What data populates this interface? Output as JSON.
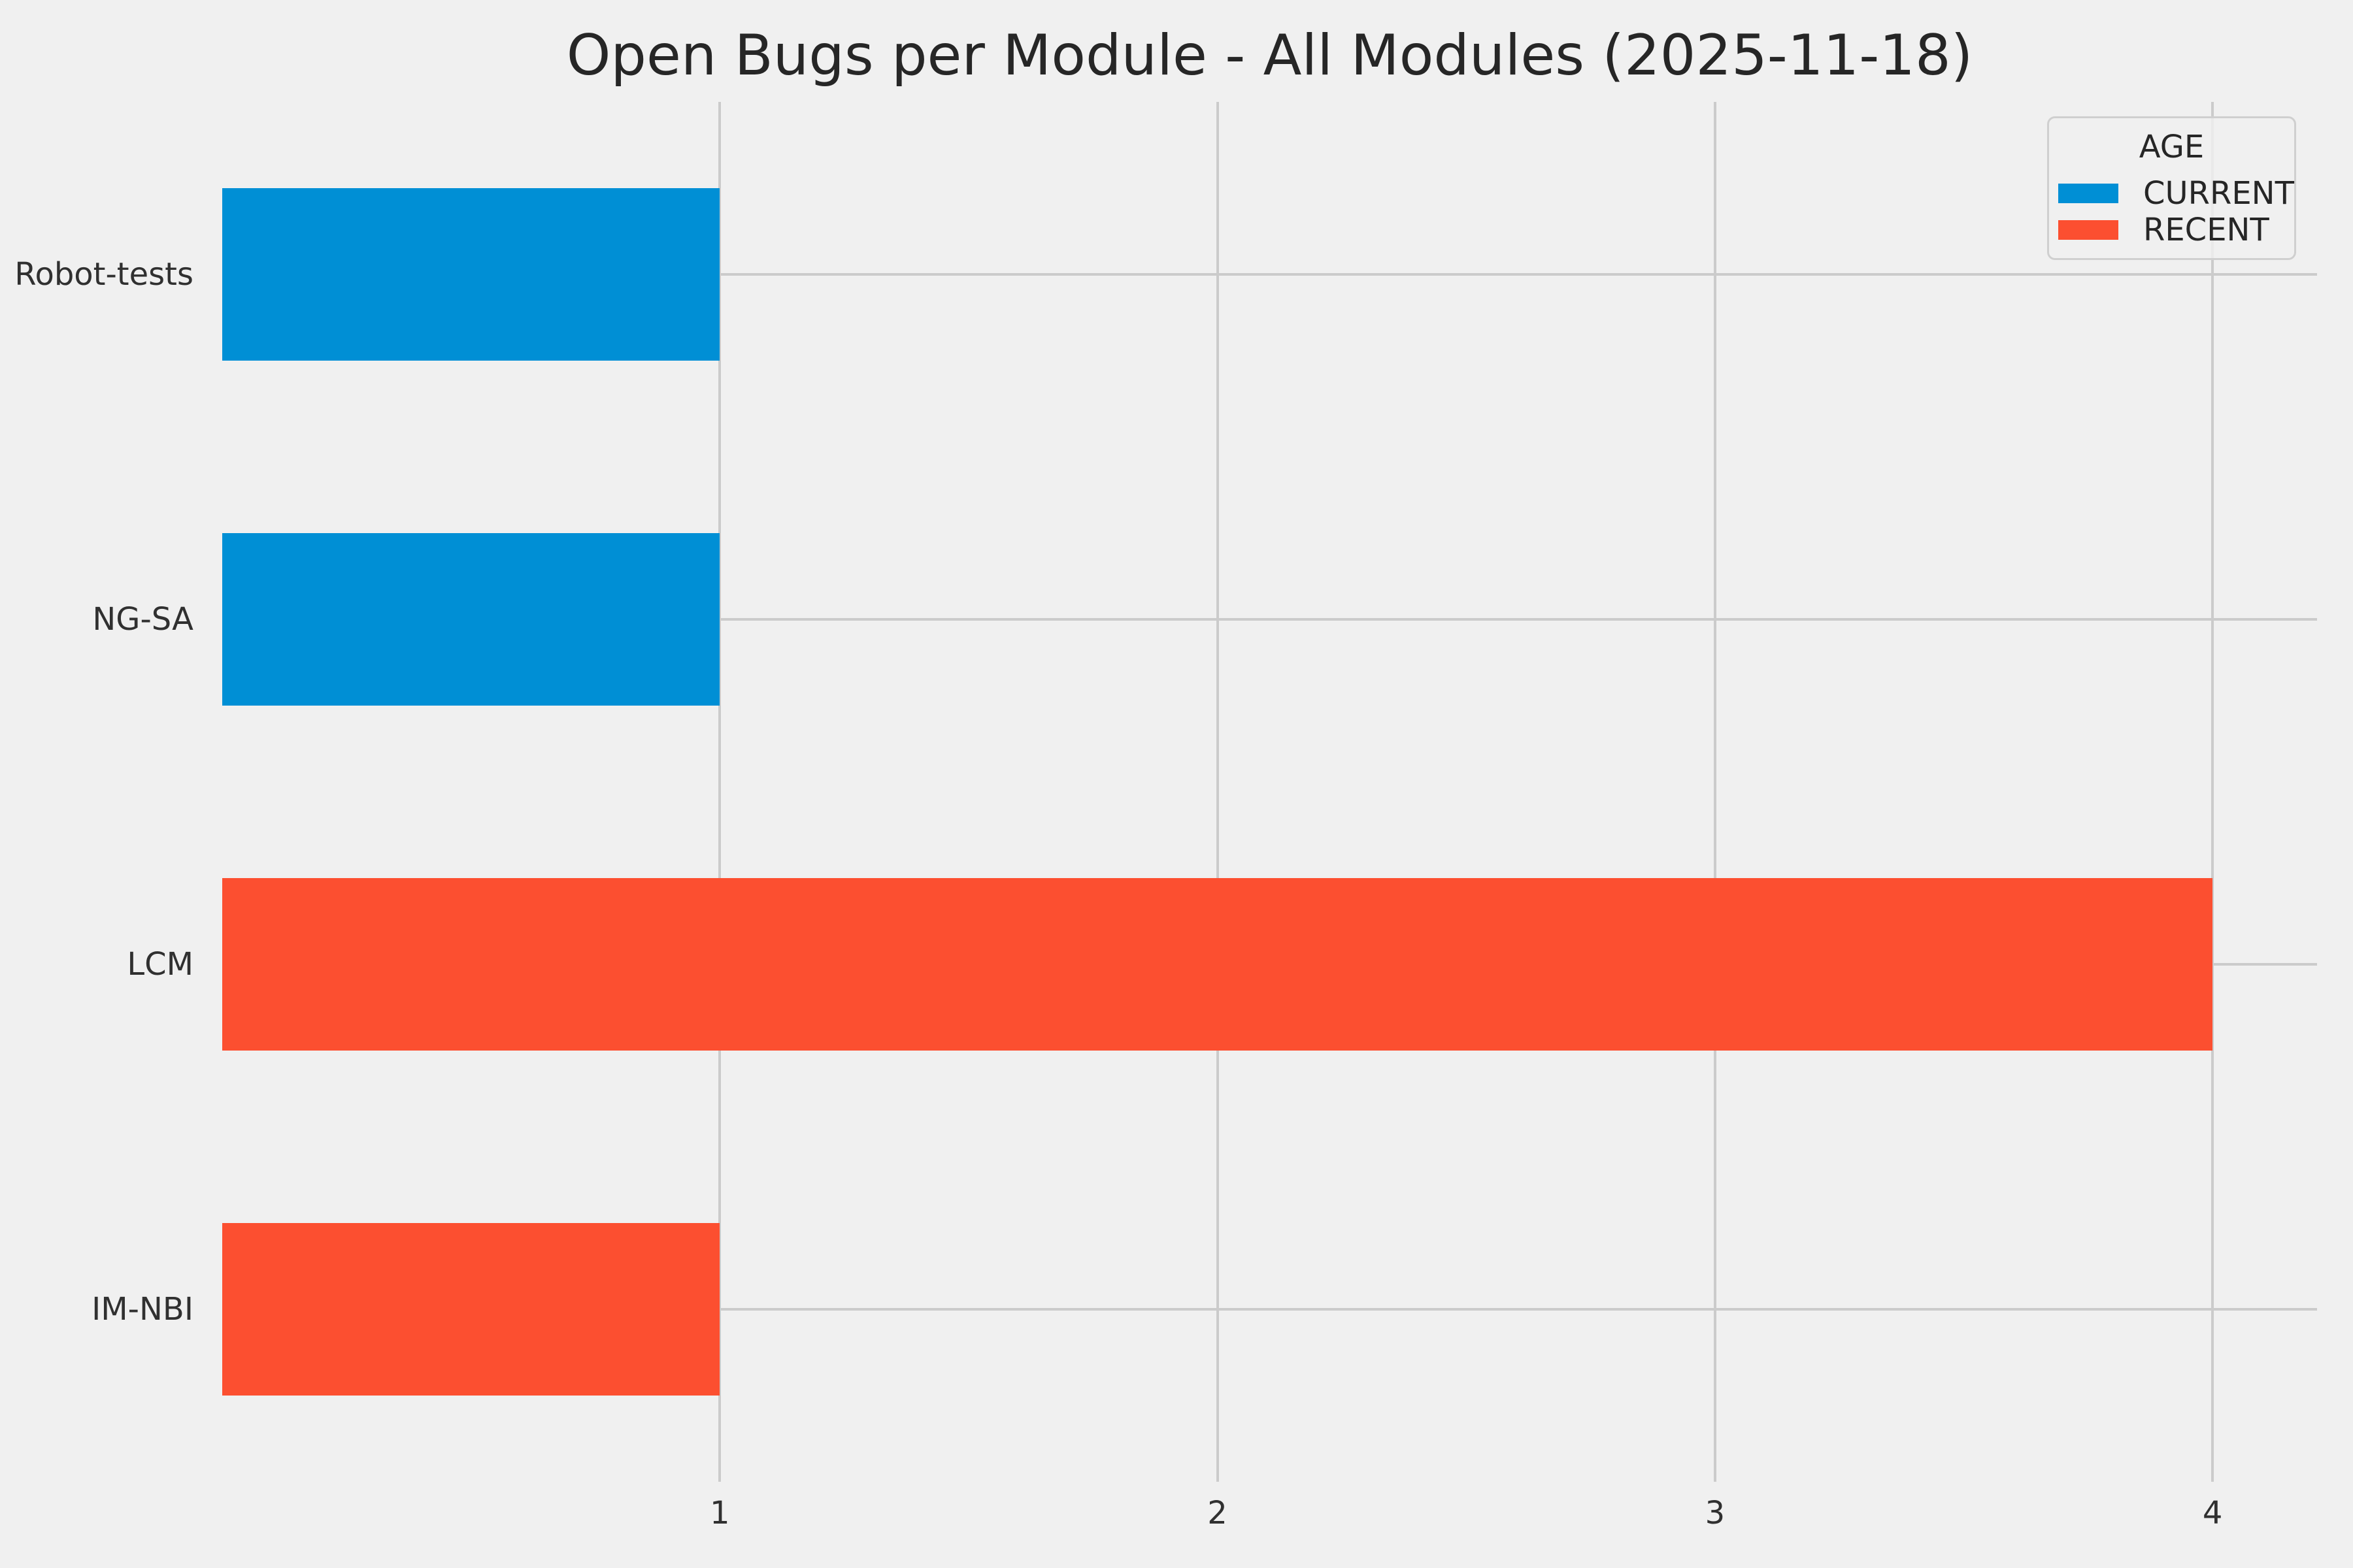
{
  "colors": {
    "background": "#f0f0f0",
    "grid": "#cbcbcb",
    "title_text": "#262626",
    "tick_text": "#303030",
    "legend_border": "#cfcfcf",
    "blue": "#008fd5",
    "red": "#fc4f30"
  },
  "legend": {
    "title": "AGE",
    "entries": [
      {
        "label": "CURRENT",
        "color": "#008fd5"
      },
      {
        "label": "RECENT",
        "color": "#fc4f30"
      }
    ]
  },
  "chart_data": {
    "type": "bar",
    "orientation": "horizontal",
    "title": "Open Bugs per Module - All Modules (2025-11-18)",
    "categories": [
      "Robot-tests",
      "NG-SA",
      "LCM",
      "IM-NBI"
    ],
    "values": [
      1,
      1,
      4,
      1
    ],
    "series_by_category": [
      "CURRENT",
      "CURRENT",
      "RECENT",
      "RECENT"
    ],
    "series": [
      {
        "name": "CURRENT",
        "color": "#008fd5",
        "values": [
          1,
          1,
          0,
          0
        ]
      },
      {
        "name": "RECENT",
        "color": "#fc4f30",
        "values": [
          0,
          0,
          4,
          1
        ]
      }
    ],
    "series_colors": {
      "CURRENT": "#008fd5",
      "RECENT": "#fc4f30"
    },
    "xlabel": "",
    "ylabel": "",
    "x_ticks": [
      1,
      2,
      3,
      4
    ],
    "x_tick_labels": [
      "1",
      "2",
      "3",
      "4"
    ],
    "xlim": [
      0,
      4.21
    ],
    "grid": true,
    "bar_fraction": 0.5,
    "legend_position": "upper right"
  }
}
